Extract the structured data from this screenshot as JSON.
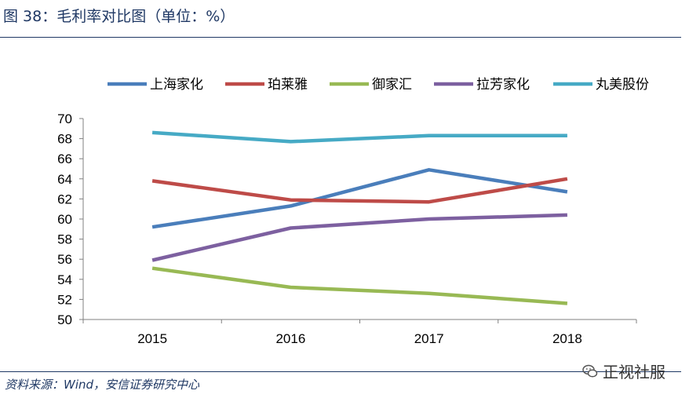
{
  "header": {
    "figure_title": "图 38：毛利率对比图（单位：%）"
  },
  "footer": {
    "source": "资料来源：Wind，安信证券研究中心",
    "watermark": "正视社服",
    "watermark_icon": "wechat-icon"
  },
  "colors": {
    "title": "#1f3864",
    "axis": "#808080"
  },
  "chart_data": {
    "type": "line",
    "title": "",
    "xlabel": "",
    "ylabel": "",
    "categories": [
      "2015",
      "2016",
      "2017",
      "2018"
    ],
    "ylim": [
      50,
      70
    ],
    "yticks": [
      "50",
      "52",
      "54",
      "56",
      "58",
      "60",
      "62",
      "64",
      "66",
      "68",
      "70"
    ],
    "grid": false,
    "legend_position": "top",
    "series": [
      {
        "name": "上海家化",
        "color": "#4a7ebb",
        "values": [
          59.2,
          61.3,
          64.9,
          62.7
        ]
      },
      {
        "name": "珀莱雅",
        "color": "#be4b48",
        "values": [
          63.8,
          61.9,
          61.7,
          64.0
        ]
      },
      {
        "name": "御家汇",
        "color": "#98b954",
        "values": [
          55.1,
          53.2,
          52.6,
          51.6
        ]
      },
      {
        "name": "拉芳家化",
        "color": "#7d60a0",
        "values": [
          55.9,
          59.1,
          60.0,
          60.4
        ]
      },
      {
        "name": "丸美股份",
        "color": "#46aac5",
        "values": [
          68.6,
          67.7,
          68.3,
          68.3
        ]
      }
    ]
  }
}
